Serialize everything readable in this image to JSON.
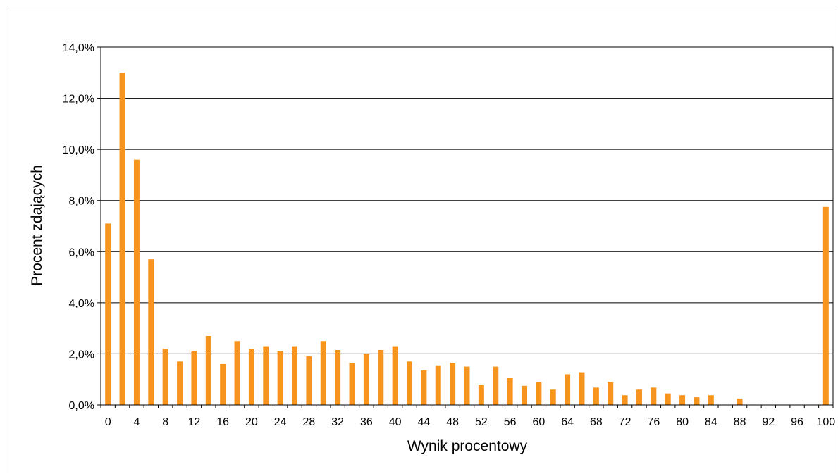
{
  "chart_data": {
    "type": "bar",
    "xlabel": "Wynik procentowy",
    "ylabel": "Procent zdających",
    "ylim": [
      0,
      14
    ],
    "y_ticks": [
      0,
      2,
      4,
      6,
      8,
      10,
      12,
      14
    ],
    "y_tick_labels": [
      "0,0%",
      "2,0%",
      "4,0%",
      "6,0%",
      "8,0%",
      "10,0%",
      "12,0%",
      "14,0%"
    ],
    "x_tick_labels": [
      "0",
      "4",
      "8",
      "12",
      "16",
      "20",
      "24",
      "28",
      "32",
      "36",
      "40",
      "44",
      "48",
      "52",
      "56",
      "60",
      "64",
      "68",
      "72",
      "76",
      "80",
      "84",
      "88",
      "92",
      "96",
      "100"
    ],
    "grid": true,
    "bar_color": "#f7941d",
    "categories": [
      0,
      2,
      4,
      6,
      8,
      10,
      12,
      14,
      16,
      18,
      20,
      22,
      24,
      26,
      28,
      30,
      32,
      34,
      36,
      38,
      40,
      42,
      44,
      46,
      48,
      50,
      52,
      54,
      56,
      58,
      60,
      62,
      64,
      66,
      68,
      70,
      72,
      74,
      76,
      78,
      80,
      82,
      84,
      86,
      88,
      90,
      92,
      94,
      96,
      98,
      100
    ],
    "values": [
      7.1,
      13.0,
      9.6,
      5.7,
      2.2,
      1.7,
      2.1,
      2.7,
      1.6,
      2.5,
      2.2,
      2.3,
      2.1,
      2.3,
      1.9,
      2.5,
      2.15,
      1.65,
      2.0,
      2.15,
      2.3,
      1.7,
      1.35,
      1.55,
      1.65,
      1.5,
      0.8,
      1.5,
      1.05,
      0.75,
      0.9,
      0.6,
      1.2,
      1.28,
      0.68,
      0.9,
      0.38,
      0.6,
      0.68,
      0.45,
      0.38,
      0.3,
      0.38,
      0.0,
      0.25,
      0.0,
      0.0,
      0.0,
      0.0,
      0.0,
      7.75
    ]
  }
}
